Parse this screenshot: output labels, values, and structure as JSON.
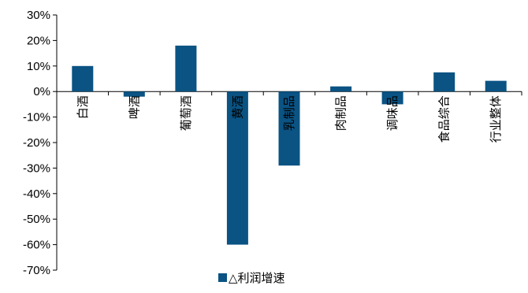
{
  "chart_data": {
    "type": "bar",
    "categories": [
      "白酒",
      "啤酒",
      "葡萄酒",
      "黄酒",
      "乳制品",
      "肉制品",
      "调味品",
      "食品综合",
      "行业整体"
    ],
    "series": [
      {
        "name": "△利润增速",
        "values": [
          10,
          -2,
          18,
          -60,
          -29,
          2,
          -5,
          7.5,
          4.2
        ],
        "color": "#0a5383"
      }
    ],
    "ylim": [
      -70,
      30
    ],
    "yticks": [
      30,
      20,
      10,
      0,
      -10,
      -20,
      -30,
      -40,
      -50,
      -60,
      -70
    ],
    "ytick_labels": [
      "30%",
      "20%",
      "10%",
      "0%",
      "-10%",
      "-20%",
      "-30%",
      "-40%",
      "-50%",
      "-60%",
      "-70%"
    ],
    "grid": false,
    "legend": "bottom",
    "title": "",
    "xlabel": "",
    "ylabel": ""
  }
}
